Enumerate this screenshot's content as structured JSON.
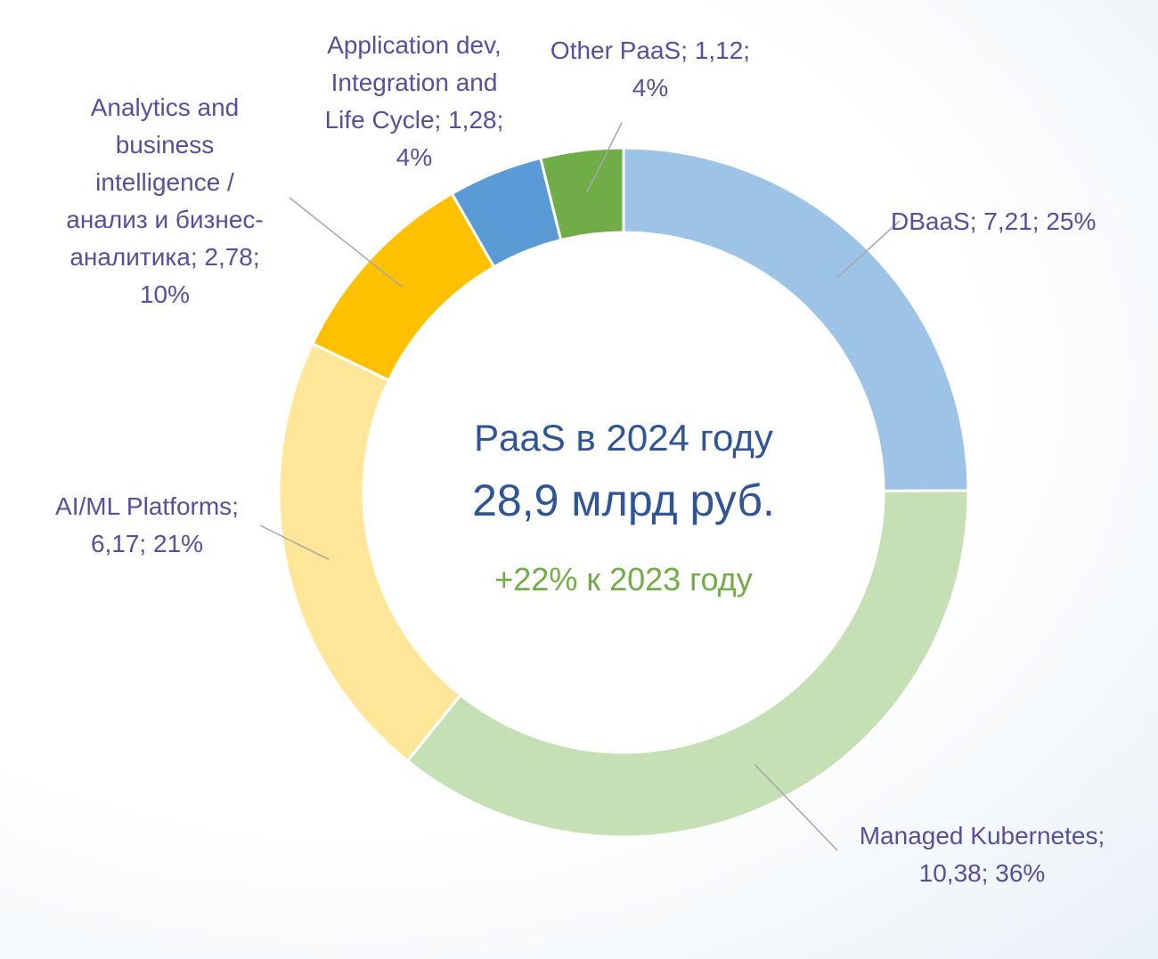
{
  "chart_data": {
    "type": "pie",
    "variant": "donut",
    "center_text": {
      "line1": "PaaS в 2024 году",
      "line2": "28,9 млрд руб.",
      "growth": "+22% к 2023 году"
    },
    "slices": [
      {
        "name": "DBaaS",
        "value": 7.21,
        "percent": 25,
        "color": "#9dc3e6",
        "label_lines": [
          "DBaaS;  7,21; 25%"
        ]
      },
      {
        "name": "Managed Kubernetes",
        "value": 10.38,
        "percent": 36,
        "color": "#c5e0b4",
        "label_lines": [
          "Managed Kubernetes;",
          "10,38; 36%"
        ]
      },
      {
        "name": "AI/ML Platforms",
        "value": 6.17,
        "percent": 21,
        "color": "#ffe699",
        "label_lines": [
          "AI/ML Platforms;",
          "6,17; 21%"
        ]
      },
      {
        "name": "Analytics and business intelligence / анализ и бизнес-аналитика",
        "value": 2.78,
        "percent": 10,
        "color": "#ffc000",
        "label_lines": [
          "Analytics and",
          "business",
          "intelligence /",
          "анализ и бизнес-",
          "аналитика;  2,78;",
          "10%"
        ]
      },
      {
        "name": "Application dev, Integration and Life Cycle",
        "value": 1.28,
        "percent": 4,
        "color": "#5b9bd5",
        "label_lines": [
          "Application dev,",
          "Integration and",
          "Life Cycle;  1,28;",
          "4%"
        ]
      },
      {
        "name": "Other PaaS",
        "value": 1.12,
        "percent": 4,
        "color": "#70ad47",
        "label_lines": [
          "Other PaaS;  1,12;",
          "4%"
        ]
      }
    ]
  }
}
